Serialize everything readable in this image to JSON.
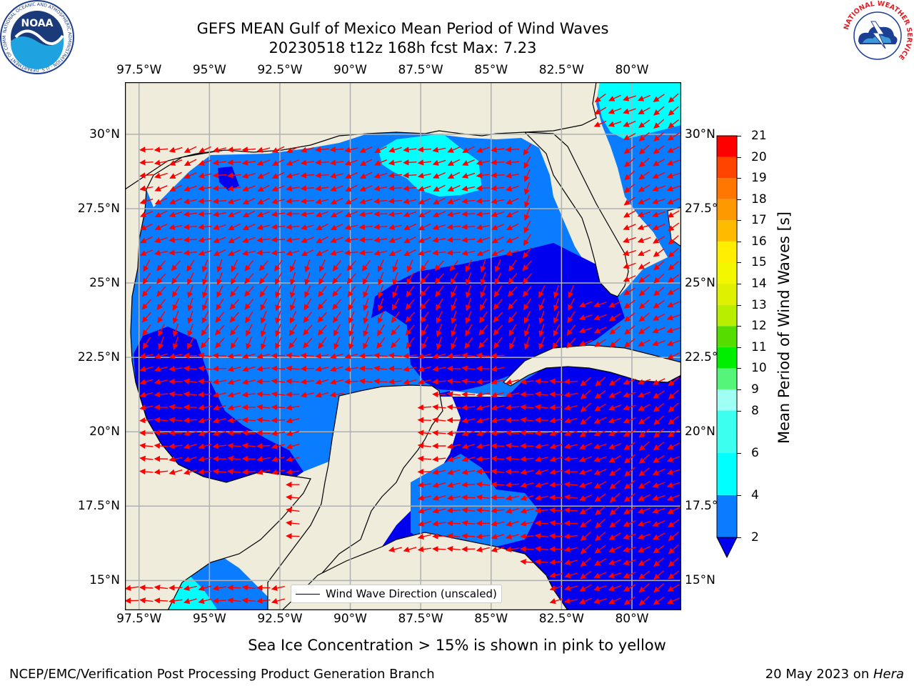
{
  "header": {
    "title_line1": "GEFS MEAN Gulf of Mexico Mean Period of Wind Waves",
    "title_line2": "20230518 t12z 168h fcst   Max: 7.23"
  },
  "logos": {
    "noaa_text": "NOAA",
    "noaa_ring_text": "NATIONAL OCEANIC AND ATMOSPHERIC ADMINISTRATION · U.S. DEPARTMENT OF COMMERCE",
    "nws_ring_text": "NATIONAL WEATHER SERVICE"
  },
  "map": {
    "lon_labels": [
      "97.5°W",
      "95°W",
      "92.5°W",
      "90°W",
      "87.5°W",
      "85°W",
      "82.5°W",
      "80°W"
    ],
    "lon_values": [
      -97.5,
      -95,
      -92.5,
      -90,
      -87.5,
      -85,
      -82.5,
      -80
    ],
    "lat_labels_left": [
      "30°N",
      "27.5°N",
      "25°N",
      "22.5°N",
      "20°N",
      "17.5°N",
      "15°N"
    ],
    "lat_labels_right": [
      "30°N",
      "27.5°N",
      "25°N",
      "22.5°N",
      "20°N",
      "17.5°N",
      "15°N"
    ],
    "lat_values": [
      30,
      27.5,
      25,
      22.5,
      20,
      17.5,
      15
    ],
    "lon_range": [
      -98,
      -78.25
    ],
    "lat_range": [
      14,
      31.75
    ],
    "legend_label": "Wind Wave Direction (unscaled)",
    "colors": {
      "land": "#efecdc",
      "coast": "#000000",
      "grid": "#b0b0b0",
      "arrow": "#ff0000",
      "period_2_4": "#0a7cff",
      "period_below_2": "#0000ee",
      "period_4_6": "#00ffff",
      "period_6_8": "#4dfff2"
    }
  },
  "colorbar": {
    "label": "Mean Period of Wind Waves [s]",
    "ticks": [
      "21",
      "20",
      "19",
      "18",
      "17",
      "16",
      "15",
      "14",
      "13",
      "12",
      "11",
      "10",
      "9",
      "8",
      "6",
      "4",
      "2"
    ],
    "bands": [
      {
        "from": 2,
        "to": 4,
        "color": "#0a7cff"
      },
      {
        "from": 4,
        "to": 6,
        "color": "#00ffff"
      },
      {
        "from": 6,
        "to": 8,
        "color": "#3dfff0"
      },
      {
        "from": 8,
        "to": 9,
        "color": "#9ffff5"
      },
      {
        "from": 9,
        "to": 10,
        "color": "#55f57a"
      },
      {
        "from": 10,
        "to": 11,
        "color": "#00ee00"
      },
      {
        "from": 11,
        "to": 12,
        "color": "#55dd00"
      },
      {
        "from": 12,
        "to": 13,
        "color": "#b9ee00"
      },
      {
        "from": 13,
        "to": 14,
        "color": "#dff000"
      },
      {
        "from": 14,
        "to": 15,
        "color": "#f3f700"
      },
      {
        "from": 15,
        "to": 16,
        "color": "#ffee00"
      },
      {
        "from": 16,
        "to": 17,
        "color": "#ffbb00"
      },
      {
        "from": 17,
        "to": 18,
        "color": "#ff9900"
      },
      {
        "from": 18,
        "to": 19,
        "color": "#ff7700"
      },
      {
        "from": 19,
        "to": 20,
        "color": "#ff4400"
      },
      {
        "from": 20,
        "to": 21,
        "color": "#ff0000"
      }
    ],
    "under_color": "#0000ee"
  },
  "footer": {
    "ice_note": "Sea Ice Concentration > 15% is shown in pink to yellow",
    "org": "NCEP/EMC/Verification Post Processing Product Generation Branch",
    "date": "20 May 2023 on ",
    "host": "Hera"
  }
}
